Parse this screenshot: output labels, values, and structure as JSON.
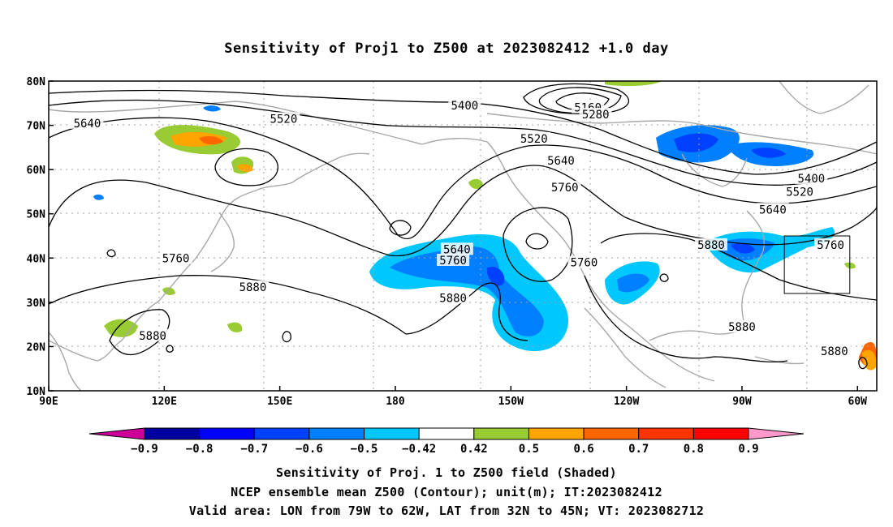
{
  "title": "Sensitivity of Proj1 to Z500 at 2023082412 +1.0 day",
  "axes": {
    "x_ticks": [
      "90E",
      "120E",
      "150E",
      "180",
      "150W",
      "120W",
      "90W",
      "60W"
    ],
    "y_ticks": [
      "10N",
      "20N",
      "30N",
      "40N",
      "50N",
      "60N",
      "70N",
      "80N"
    ]
  },
  "contour_labels": [
    {
      "text": "5640",
      "lon": 100,
      "lat": 70.5
    },
    {
      "text": "5520",
      "lon": 151,
      "lat": 71.5
    },
    {
      "text": "5400",
      "lon": 198,
      "lat": 74.5
    },
    {
      "text": "5160",
      "lon": 230,
      "lat": 74
    },
    {
      "text": "5280",
      "lon": 232,
      "lat": 72.5
    },
    {
      "text": "5520",
      "lon": 216,
      "lat": 67
    },
    {
      "text": "5640",
      "lon": 223,
      "lat": 62
    },
    {
      "text": "5760",
      "lon": 224,
      "lat": 56
    },
    {
      "text": "5400",
      "lon": 288,
      "lat": 58
    },
    {
      "text": "5520",
      "lon": 285,
      "lat": 55
    },
    {
      "text": "5640",
      "lon": 278,
      "lat": 51
    },
    {
      "text": "5760",
      "lon": 293,
      "lat": 43
    },
    {
      "text": "5880",
      "lon": 262,
      "lat": 43
    },
    {
      "text": "5640",
      "lon": 196,
      "lat": 42
    },
    {
      "text": "5760",
      "lon": 195,
      "lat": 39.5
    },
    {
      "text": "5760",
      "lon": 229,
      "lat": 39
    },
    {
      "text": "5760",
      "lon": 123,
      "lat": 40
    },
    {
      "text": "5880",
      "lon": 143,
      "lat": 33.5
    },
    {
      "text": "5880",
      "lon": 195,
      "lat": 31
    },
    {
      "text": "5880",
      "lon": 117,
      "lat": 22.5
    },
    {
      "text": "5880",
      "lon": 270,
      "lat": 24.5
    },
    {
      "text": "5880",
      "lon": 294,
      "lat": 19
    }
  ],
  "colorbar": {
    "labels": [
      "−0.9",
      "−0.8",
      "−0.7",
      "−0.6",
      "−0.5",
      "−0.42",
      "0.42",
      "0.5",
      "0.6",
      "0.7",
      "0.8",
      "0.9"
    ],
    "colors": [
      "#0000a0",
      "#0000ff",
      "#0040ff",
      "#0080ff",
      "#00c8ff",
      "#ffffff",
      "#99cc33",
      "#ffa500",
      "#ff6600",
      "#ff3300",
      "#ff0000"
    ],
    "end_low_color": "#cc0099",
    "end_high_color": "#ff99cc"
  },
  "captions": [
    "Sensitivity of Proj. 1 to Z500 field (Shaded)",
    "NCEP ensemble mean Z500 (Contour); unit(m); IT:2023082412",
    "Valid area: LON from 79W to 62W, LAT from 32N to 45N; VT: 2023082712"
  ],
  "valid_area": {
    "lon_min": 281,
    "lon_max": 298,
    "lat_min": 32,
    "lat_max": 45
  },
  "map_extent": {
    "lon_min": 90,
    "lon_max": 305,
    "lat_min": 10,
    "lat_max": 80
  },
  "colors": {
    "coast": "#a8a8a8",
    "grid": "#a0a0a0",
    "contour": "#000000"
  }
}
